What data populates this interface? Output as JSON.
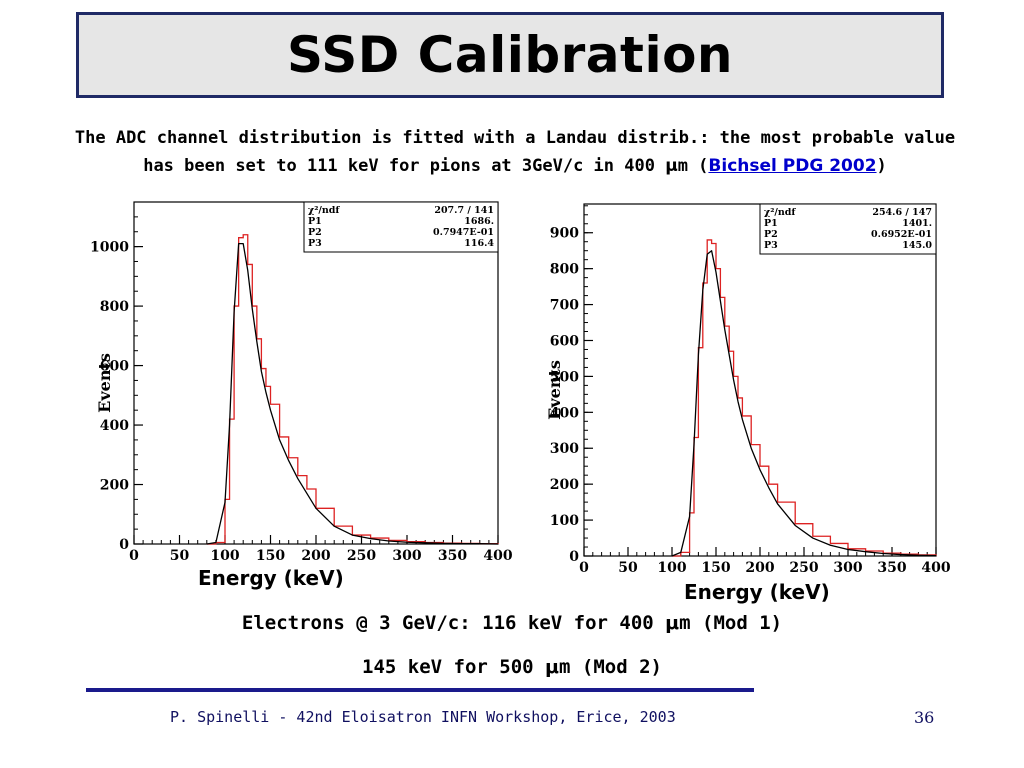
{
  "slide": {
    "title": "SSD Calibration",
    "subtitle_line1": "The ADC channel distribution is fitted with a Landau distrib.: the most probable value",
    "subtitle_line2_prefix": "has been set to 111 keV  for pions at 3GeV/c in 400 ",
    "mu": "μ",
    "subtitle_line2_unit": "m (",
    "subtitle_link": "Bichsel PDG 2002",
    "subtitle_line2_suffix": ")",
    "summary_line1_prefix": "Electrons @ 3 GeV/c: 116 keV for 400 ",
    "summary_line1_suffix": "m (Mod 1)",
    "summary_line2_prefix": "145 keV for 500 ",
    "summary_line2_suffix": "m (Mod 2)",
    "footer": "P. Spinelli - 42nd Eloisatron INFN Workshop, Erice, 2003",
    "page_number": "36"
  },
  "chart_data": [
    {
      "type": "histogram",
      "panel": "left",
      "xlabel": "Energy (keV)",
      "ylabel": "Events",
      "xlim": [
        0,
        400
      ],
      "ylim": [
        0,
        1150
      ],
      "xticks": [
        "0",
        "50",
        "100",
        "150",
        "200",
        "250",
        "300",
        "350",
        "400"
      ],
      "yticks": [
        "0",
        "200",
        "400",
        "600",
        "800",
        "1000"
      ],
      "ytick_values": [
        0,
        200,
        400,
        600,
        800,
        1000
      ],
      "stats": [
        {
          "name": "χ²/ndf",
          "value": "207.7   /   141"
        },
        {
          "name": "P1",
          "value": "1686."
        },
        {
          "name": "P2",
          "value": "0.7947E-01"
        },
        {
          "name": "P3",
          "value": "116.4"
        }
      ],
      "histogram": {
        "x": [
          80,
          90,
          100,
          105,
          110,
          115,
          120,
          125,
          130,
          135,
          140,
          145,
          150,
          160,
          170,
          180,
          190,
          200,
          220,
          240,
          260,
          280,
          300,
          320,
          340,
          360,
          380,
          400
        ],
        "y": [
          0,
          5,
          150,
          420,
          800,
          1030,
          1040,
          940,
          800,
          690,
          590,
          530,
          470,
          360,
          290,
          230,
          185,
          120,
          60,
          30,
          20,
          12,
          8,
          5,
          3,
          2,
          1,
          0
        ]
      },
      "fit": {
        "x": [
          80,
          90,
          100,
          105,
          110,
          115,
          120,
          125,
          130,
          135,
          140,
          145,
          150,
          160,
          170,
          180,
          190,
          200,
          220,
          240,
          260,
          280,
          300,
          320,
          340,
          360,
          380,
          400
        ],
        "y": [
          0,
          5,
          140,
          400,
          780,
          1010,
          1010,
          920,
          790,
          680,
          580,
          510,
          450,
          350,
          280,
          220,
          170,
          120,
          60,
          30,
          18,
          10,
          6,
          4,
          2,
          1,
          1,
          0
        ]
      }
    },
    {
      "type": "histogram",
      "panel": "right",
      "xlabel": "Energy (keV)",
      "ylabel": "Events",
      "xlim": [
        0,
        400
      ],
      "ylim": [
        0,
        980
      ],
      "xticks": [
        "0",
        "50",
        "100",
        "150",
        "200",
        "250",
        "300",
        "350",
        "400"
      ],
      "yticks": [
        "0",
        "100",
        "200",
        "300",
        "400",
        "500",
        "600",
        "700",
        "800",
        "900"
      ],
      "ytick_values": [
        0,
        100,
        200,
        300,
        400,
        500,
        600,
        700,
        800,
        900
      ],
      "stats": [
        {
          "name": "χ²/ndf",
          "value": "254.6   /   147"
        },
        {
          "name": "P1",
          "value": "1401."
        },
        {
          "name": "P2",
          "value": "0.6952E-01"
        },
        {
          "name": "P3",
          "value": "145.0"
        }
      ],
      "histogram": {
        "x": [
          100,
          110,
          120,
          125,
          130,
          135,
          140,
          145,
          150,
          155,
          160,
          165,
          170,
          175,
          180,
          190,
          200,
          210,
          220,
          240,
          260,
          280,
          300,
          320,
          340,
          360,
          380,
          400
        ],
        "y": [
          0,
          10,
          120,
          330,
          580,
          760,
          880,
          870,
          800,
          720,
          640,
          570,
          500,
          440,
          390,
          310,
          250,
          200,
          150,
          90,
          55,
          35,
          20,
          14,
          8,
          5,
          3,
          1
        ]
      },
      "fit": {
        "x": [
          100,
          110,
          120,
          125,
          130,
          135,
          140,
          145,
          150,
          155,
          160,
          165,
          170,
          175,
          180,
          190,
          200,
          210,
          220,
          240,
          260,
          280,
          300,
          320,
          340,
          360,
          380,
          400
        ],
        "y": [
          0,
          10,
          110,
          310,
          560,
          740,
          840,
          850,
          790,
          710,
          630,
          560,
          490,
          430,
          380,
          300,
          240,
          190,
          145,
          85,
          50,
          30,
          18,
          12,
          7,
          4,
          2,
          1
        ]
      }
    }
  ],
  "colors": {
    "title_border": "#1f2a66",
    "title_bg": "#e6e6e6",
    "histogram": "#dd2222",
    "fit": "#000000",
    "link": "#0000cc",
    "footer_rule": "#1a1a8c"
  }
}
